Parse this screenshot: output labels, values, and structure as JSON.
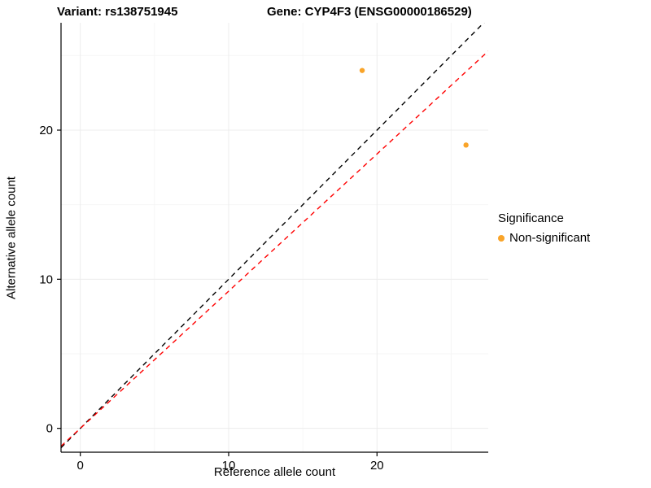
{
  "chart_data": {
    "type": "scatter",
    "title_left": "Variant: rs138751945",
    "title_right": "Gene: CYP4F3 (ENSG00000186529)",
    "xlabel": "Reference allele count",
    "ylabel": "Alternative allele count",
    "xlim": [
      -1.3,
      27.5
    ],
    "ylim": [
      -1.6,
      27.2
    ],
    "x_ticks": [
      0,
      10,
      20
    ],
    "y_ticks": [
      0,
      10,
      20
    ],
    "x_minor_ticks": [
      5,
      15,
      25
    ],
    "y_minor_ticks": [
      5,
      15,
      25
    ],
    "grid": true,
    "points": [
      {
        "x": 19,
        "y": 24
      },
      {
        "x": 26,
        "y": 19
      }
    ],
    "point_color": "#F9A429",
    "point_radius": 3.2,
    "lines": [
      {
        "name": "identity-line",
        "slope": 1.0,
        "intercept": 0,
        "color": "#000000",
        "dashed": true
      },
      {
        "name": "fit-line",
        "slope": 0.92,
        "intercept": 0,
        "color": "#FF0000",
        "dashed": true
      }
    ],
    "legend": {
      "title": "Significance",
      "position": "right",
      "entries": [
        {
          "label": "Non-significant",
          "color": "#F9A429"
        }
      ]
    },
    "colors": {
      "axis": "#000000",
      "major_grid": "#ECECEC",
      "minor_grid": "#F6F6F6",
      "tick_label": "#000000",
      "background": "#FFFFFF"
    }
  }
}
